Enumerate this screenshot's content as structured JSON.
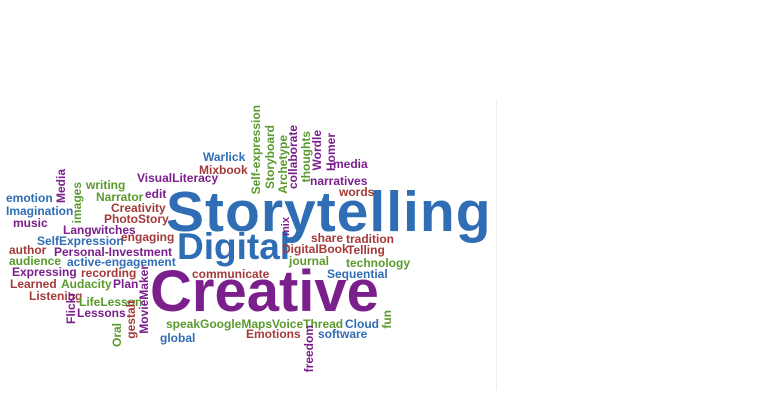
{
  "colors": {
    "blue": "#2f6db5",
    "green": "#5a9a2c",
    "purple": "#7a1f8b",
    "red": "#a33a3a"
  },
  "words": {
    "storytelling": "Storytelling",
    "creative": "Creative",
    "digital": "Digital",
    "warlick": "Warlick",
    "mixbook": "Mixbook",
    "visualliteracy": "VisualLiteracy",
    "writing": "writing",
    "edit": "edit",
    "narrator": "Narrator",
    "creativity": "Creativity",
    "photostory": "PhotoStory",
    "emotion": "emotion",
    "imagination": "Imagination",
    "music": "music",
    "langwitches": "Langwitches",
    "selfexpression": "SelfExpression",
    "engaging": "engaging",
    "author": "author",
    "personal_investment": "Personal-Investment",
    "audience": "audience",
    "active_engagement": "active-engagement",
    "expressing": "Expressing",
    "recording": "recording",
    "learned": "Learned",
    "audacity": "Audacity",
    "plan": "Plan",
    "listening": "Listening",
    "lifelesson": "LifeLesson",
    "lessons": "Lessons",
    "media_left": "Media",
    "images": "images",
    "flickr": "Flickr",
    "gestalt": "gestalt",
    "oral": "Oral",
    "moviemaker": "MovieMaker",
    "self_expression": "Self-expression",
    "storyboard": "Storyboard",
    "archetype": "Archetype",
    "thoughts": "thoughts",
    "collaborate": "collaborate",
    "wordle": "Wordle",
    "homer": "Homer",
    "media_right": "media",
    "narratives": "narratives",
    "words": "words",
    "mix": "mix",
    "share": "share",
    "tradition": "tradition",
    "digitalbook": "DigitalBook",
    "telling": "Telling",
    "journal": "journal",
    "technology": "technology",
    "communicate": "communicate",
    "sequential": "Sequential",
    "speak": "speak",
    "googlemaps": "GoogleMaps",
    "voicethread": "VoiceThread",
    "cloud": "Cloud",
    "fun": "fun",
    "global": "global",
    "emotions": "Emotions",
    "software": "software",
    "freedom": "freedom"
  }
}
